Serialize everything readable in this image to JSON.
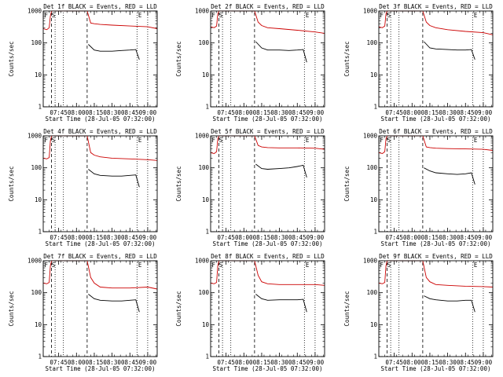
{
  "chart_data": [
    {
      "type": "line",
      "title": "Det 1f BLACK = Events, RED = LLD",
      "xlabel": "Start Time (28-Jul-05 07:32:00)",
      "ylabel": "Counts/sec",
      "ylim": [
        1,
        1000
      ],
      "yscale": "log",
      "xticks": [
        "07:45",
        "08:00",
        "08:15",
        "08:30",
        "08:45",
        "09:00"
      ],
      "markers": [
        "F",
        "S",
        "E"
      ],
      "series": [
        {
          "name": "Events",
          "color": "#000000",
          "x": [
            "08:10",
            "08:15",
            "08:20",
            "08:30",
            "08:38",
            "08:45",
            "08:50",
            "08:53"
          ],
          "values": [
            90,
            60,
            55,
            55,
            58,
            60,
            62,
            30
          ]
        },
        {
          "name": "LLD",
          "color": "#cc0000",
          "x": [
            "07:32",
            "07:35",
            "07:37",
            "07:38",
            "07:39",
            "07:40",
            "08:09",
            "08:12",
            "08:15",
            "08:20",
            "08:30",
            "08:45",
            "09:00",
            "09:08"
          ],
          "values": [
            280,
            260,
            300,
            700,
            1000,
            1000,
            1000,
            420,
            400,
            380,
            360,
            340,
            320,
            280
          ]
        }
      ]
    },
    {
      "type": "line",
      "title": "Det 2f BLACK = Events, RED = LLD",
      "xlabel": "Start Time (28-Jul-05 07:32:00)",
      "ylabel": "Counts/sec",
      "ylim": [
        1,
        1000
      ],
      "yscale": "log",
      "xticks": [
        "07:45",
        "08:00",
        "08:15",
        "08:30",
        "08:45",
        "09:00"
      ],
      "markers": [
        "F",
        "S",
        "E"
      ],
      "series": [
        {
          "name": "Events",
          "color": "#000000",
          "x": [
            "08:10",
            "08:15",
            "08:20",
            "08:30",
            "08:38",
            "08:45",
            "08:50",
            "08:53"
          ],
          "values": [
            110,
            70,
            60,
            60,
            58,
            60,
            62,
            25
          ]
        },
        {
          "name": "LLD",
          "color": "#cc0000",
          "x": [
            "07:32",
            "07:35",
            "07:37",
            "07:38",
            "07:39",
            "07:40",
            "08:09",
            "08:12",
            "08:15",
            "08:20",
            "08:30",
            "08:45",
            "09:00",
            "09:08"
          ],
          "values": [
            320,
            300,
            340,
            800,
            1000,
            1000,
            1000,
            450,
            350,
            300,
            280,
            250,
            220,
            200
          ]
        }
      ]
    },
    {
      "type": "line",
      "title": "Det 3f BLACK = Events, RED = LLD",
      "xlabel": "Start Time (28-Jul-05 07:32:00)",
      "ylabel": "Counts/sec",
      "ylim": [
        1,
        1000
      ],
      "yscale": "log",
      "xticks": [
        "07:45",
        "08:00",
        "08:15",
        "08:30",
        "08:45",
        "09:00"
      ],
      "markers": [
        "F",
        "S",
        "E"
      ],
      "series": [
        {
          "name": "Events",
          "color": "#000000",
          "x": [
            "08:10",
            "08:15",
            "08:20",
            "08:30",
            "08:38",
            "08:45",
            "08:50",
            "08:53"
          ],
          "values": [
            110,
            70,
            65,
            62,
            60,
            60,
            62,
            30
          ]
        },
        {
          "name": "LLD",
          "color": "#cc0000",
          "x": [
            "07:32",
            "07:35",
            "07:37",
            "07:38",
            "07:39",
            "07:40",
            "08:09",
            "08:12",
            "08:15",
            "08:20",
            "08:30",
            "08:45",
            "09:00",
            "09:08"
          ],
          "values": [
            320,
            300,
            340,
            800,
            1000,
            1000,
            1000,
            450,
            350,
            300,
            260,
            230,
            210,
            180
          ]
        }
      ]
    },
    {
      "type": "line",
      "title": "Det 4f BLACK = Events, RED = LLD",
      "xlabel": "Start Time (28-Jul-05 07:32:00)",
      "ylabel": "Counts/sec",
      "ylim": [
        1,
        1000
      ],
      "yscale": "log",
      "xticks": [
        "07:45",
        "08:00",
        "08:15",
        "08:30",
        "08:45",
        "09:00"
      ],
      "markers": [
        "F",
        "S",
        "E"
      ],
      "series": [
        {
          "name": "Events",
          "color": "#000000",
          "x": [
            "08:10",
            "08:15",
            "08:20",
            "08:30",
            "08:38",
            "08:45",
            "08:50",
            "08:53"
          ],
          "values": [
            90,
            65,
            58,
            55,
            55,
            58,
            60,
            25
          ]
        },
        {
          "name": "LLD",
          "color": "#cc0000",
          "x": [
            "07:32",
            "07:35",
            "07:37",
            "07:38",
            "07:39",
            "07:40",
            "08:09",
            "08:12",
            "08:15",
            "08:20",
            "08:30",
            "08:45",
            "09:00",
            "09:08"
          ],
          "values": [
            200,
            190,
            210,
            700,
            1000,
            1000,
            1000,
            300,
            250,
            220,
            200,
            190,
            180,
            170
          ]
        }
      ]
    },
    {
      "type": "line",
      "title": "Det 5f BLACK = Events, RED = LLD",
      "xlabel": "Start Time (28-Jul-05 07:32:00)",
      "ylabel": "Counts/sec",
      "ylim": [
        1,
        1000
      ],
      "yscale": "log",
      "xticks": [
        "07:45",
        "08:00",
        "08:15",
        "08:30",
        "08:45",
        "09:00"
      ],
      "markers": [
        "F",
        "S",
        "E"
      ],
      "series": [
        {
          "name": "Events",
          "color": "#000000",
          "x": [
            "08:10",
            "08:15",
            "08:20",
            "08:30",
            "08:38",
            "08:45",
            "08:50",
            "08:53"
          ],
          "values": [
            130,
            95,
            90,
            95,
            100,
            110,
            120,
            50
          ]
        },
        {
          "name": "LLD",
          "color": "#cc0000",
          "x": [
            "07:32",
            "07:35",
            "07:37",
            "07:38",
            "07:39",
            "07:40",
            "08:09",
            "08:12",
            "08:15",
            "08:20",
            "08:30",
            "08:45",
            "09:00",
            "09:08"
          ],
          "values": [
            300,
            280,
            320,
            800,
            1000,
            1000,
            1000,
            500,
            450,
            430,
            420,
            420,
            410,
            380
          ]
        }
      ]
    },
    {
      "type": "line",
      "title": "Det 6f BLACK = Events, RED = LLD",
      "xlabel": "Start Time (28-Jul-05 07:32:00)",
      "ylabel": "Counts/sec",
      "ylim": [
        1,
        1000
      ],
      "yscale": "log",
      "xticks": [
        "07:45",
        "08:00",
        "08:15",
        "08:30",
        "08:45",
        "09:00"
      ],
      "markers": [
        "F",
        "S",
        "E"
      ],
      "series": [
        {
          "name": "Events",
          "color": "#000000",
          "x": [
            "08:10",
            "08:15",
            "08:20",
            "08:30",
            "08:38",
            "08:45",
            "08:50",
            "08:53"
          ],
          "values": [
            100,
            80,
            70,
            65,
            62,
            65,
            70,
            30
          ]
        },
        {
          "name": "LLD",
          "color": "#cc0000",
          "x": [
            "07:32",
            "07:35",
            "07:37",
            "07:38",
            "07:39",
            "07:40",
            "08:09",
            "08:12",
            "08:15",
            "08:20",
            "08:30",
            "08:45",
            "09:00",
            "09:08"
          ],
          "values": [
            300,
            280,
            320,
            800,
            1000,
            1000,
            1000,
            450,
            430,
            410,
            400,
            390,
            380,
            350
          ]
        }
      ]
    },
    {
      "type": "line",
      "title": "Det 7f BLACK = Events, RED = LLD",
      "xlabel": "Start Time (28-Jul-05 07:32:00)",
      "ylabel": "Counts/sec",
      "ylim": [
        1,
        1000
      ],
      "yscale": "log",
      "xticks": [
        "07:45",
        "08:00",
        "08:15",
        "08:30",
        "08:45",
        "09:00"
      ],
      "markers": [
        "F",
        "S",
        "E"
      ],
      "series": [
        {
          "name": "Events",
          "color": "#000000",
          "x": [
            "08:10",
            "08:15",
            "08:20",
            "08:30",
            "08:38",
            "08:45",
            "08:50",
            "08:53"
          ],
          "values": [
            90,
            65,
            58,
            55,
            55,
            58,
            60,
            25
          ]
        },
        {
          "name": "LLD",
          "color": "#cc0000",
          "x": [
            "07:32",
            "07:35",
            "07:37",
            "07:38",
            "07:39",
            "07:40",
            "08:09",
            "08:12",
            "08:15",
            "08:20",
            "08:30",
            "08:45",
            "09:00",
            "09:08"
          ],
          "values": [
            200,
            190,
            210,
            700,
            1000,
            1000,
            1000,
            300,
            200,
            150,
            140,
            140,
            150,
            130
          ]
        }
      ]
    },
    {
      "type": "line",
      "title": "Det 8f BLACK = Events, RED = LLD",
      "xlabel": "Start Time (28-Jul-05 07:32:00)",
      "ylabel": "Counts/sec",
      "ylim": [
        1,
        1000
      ],
      "yscale": "log",
      "xticks": [
        "07:45",
        "08:00",
        "08:15",
        "08:30",
        "08:45",
        "09:00"
      ],
      "markers": [
        "F",
        "S",
        "E"
      ],
      "series": [
        {
          "name": "Events",
          "color": "#000000",
          "x": [
            "08:10",
            "08:15",
            "08:20",
            "08:30",
            "08:38",
            "08:45",
            "08:50",
            "08:53"
          ],
          "values": [
            90,
            65,
            58,
            60,
            60,
            60,
            62,
            25
          ]
        },
        {
          "name": "LLD",
          "color": "#cc0000",
          "x": [
            "07:32",
            "07:35",
            "07:37",
            "07:38",
            "07:39",
            "07:40",
            "08:09",
            "08:12",
            "08:15",
            "08:20",
            "08:30",
            "08:45",
            "09:00",
            "09:08"
          ],
          "values": [
            200,
            190,
            210,
            700,
            1000,
            1000,
            1000,
            350,
            220,
            190,
            180,
            180,
            180,
            170
          ]
        }
      ]
    },
    {
      "type": "line",
      "title": "Det 9f BLACK = Events, RED = LLD",
      "xlabel": "Start Time (28-Jul-05 07:32:00)",
      "ylabel": "Counts/sec",
      "ylim": [
        1,
        1000
      ],
      "yscale": "log",
      "xticks": [
        "07:45",
        "08:00",
        "08:15",
        "08:30",
        "08:45",
        "09:00"
      ],
      "markers": [
        "F",
        "S",
        "E"
      ],
      "series": [
        {
          "name": "Events",
          "color": "#000000",
          "x": [
            "08:10",
            "08:15",
            "08:20",
            "08:30",
            "08:38",
            "08:45",
            "08:50",
            "08:53"
          ],
          "values": [
            80,
            65,
            60,
            55,
            55,
            58,
            58,
            25
          ]
        },
        {
          "name": "LLD",
          "color": "#cc0000",
          "x": [
            "07:32",
            "07:35",
            "07:37",
            "07:38",
            "07:39",
            "07:40",
            "08:09",
            "08:12",
            "08:15",
            "08:20",
            "08:30",
            "08:45",
            "09:00",
            "09:08"
          ],
          "values": [
            200,
            190,
            210,
            700,
            1000,
            1000,
            1000,
            300,
            220,
            180,
            170,
            160,
            155,
            150
          ]
        }
      ]
    }
  ]
}
